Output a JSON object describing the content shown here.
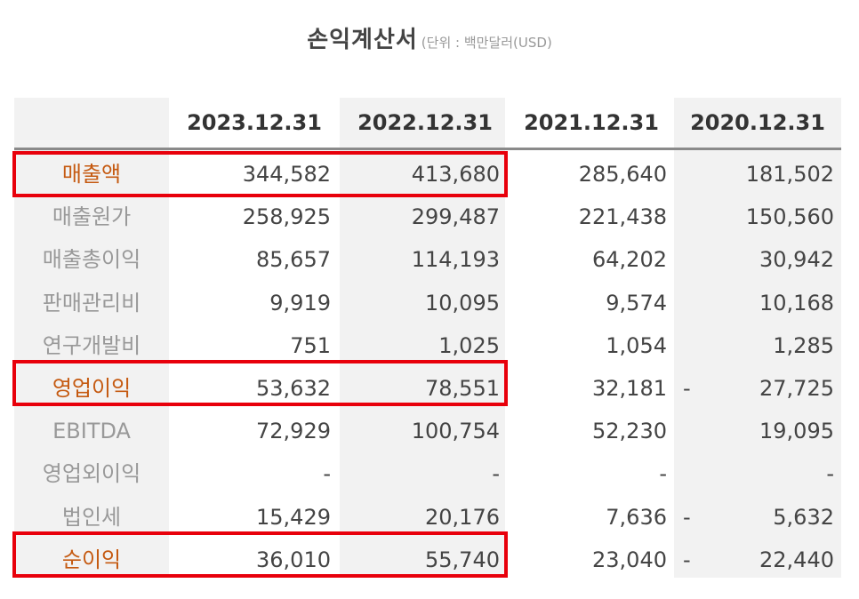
{
  "title": {
    "main": "손익계산서",
    "unit": "(단위 : 백만달러(USD)"
  },
  "columns": [
    "2023.12.31",
    "2022.12.31",
    "2021.12.31",
    "2020.12.31"
  ],
  "rows": [
    {
      "label": "매출액",
      "highlight": true,
      "values": [
        "344,582",
        "413,680",
        "285,640",
        "181,502"
      ],
      "neg": [
        "",
        "",
        "",
        ""
      ]
    },
    {
      "label": "매출원가",
      "highlight": false,
      "values": [
        "258,925",
        "299,487",
        "221,438",
        "150,560"
      ],
      "neg": [
        "",
        "",
        "",
        ""
      ]
    },
    {
      "label": "매출총이익",
      "highlight": false,
      "values": [
        "85,657",
        "114,193",
        "64,202",
        "30,942"
      ],
      "neg": [
        "",
        "",
        "",
        ""
      ]
    },
    {
      "label": "판매관리비",
      "highlight": false,
      "values": [
        "9,919",
        "10,095",
        "9,574",
        "10,168"
      ],
      "neg": [
        "",
        "",
        "",
        ""
      ]
    },
    {
      "label": "연구개발비",
      "highlight": false,
      "values": [
        "751",
        "1,025",
        "1,054",
        "1,285"
      ],
      "neg": [
        "",
        "",
        "",
        ""
      ]
    },
    {
      "label": "영업이익",
      "highlight": true,
      "values": [
        "53,632",
        "78,551",
        "32,181",
        "27,725"
      ],
      "neg": [
        "",
        "",
        "",
        "-"
      ]
    },
    {
      "label": "EBITDA",
      "highlight": false,
      "values": [
        "72,929",
        "100,754",
        "52,230",
        "19,095"
      ],
      "neg": [
        "",
        "",
        "",
        ""
      ]
    },
    {
      "label": "영업외이익",
      "highlight": false,
      "values": [
        "-",
        "-",
        "-",
        "-"
      ],
      "neg": [
        "",
        "",
        "",
        ""
      ]
    },
    {
      "label": "법인세",
      "highlight": false,
      "values": [
        "15,429",
        "20,176",
        "7,636",
        "5,632"
      ],
      "neg": [
        "",
        "",
        "",
        "-"
      ]
    },
    {
      "label": "순이익",
      "highlight": true,
      "values": [
        "36,010",
        "55,740",
        "23,040",
        "22,440"
      ],
      "neg": [
        "",
        "",
        "",
        "-"
      ]
    }
  ],
  "colors": {
    "highlight_label": "#c55a11",
    "box_border": "#e8000b",
    "shade": "#f2f2f2"
  }
}
